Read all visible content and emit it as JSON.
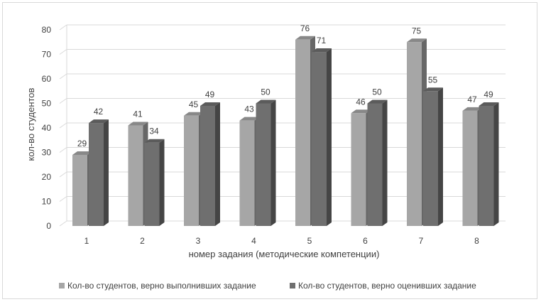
{
  "chart_data": {
    "type": "bar",
    "categories": [
      "1",
      "2",
      "3",
      "4",
      "5",
      "6",
      "7",
      "8"
    ],
    "series": [
      {
        "name": "Кол-во студентов, верно выполнивших задание",
        "values": [
          29,
          41,
          45,
          43,
          76,
          46,
          75,
          47
        ],
        "color": "#a6a6a6"
      },
      {
        "name": "Кол-во студентов, верно оценивших задание",
        "values": [
          42,
          34,
          49,
          50,
          71,
          50,
          55,
          49
        ],
        "color": "#6f6f6f"
      }
    ],
    "xlabel": "номер задания (методические компетенции)",
    "ylabel": "кол-во студентов",
    "ylim": [
      0,
      80
    ],
    "yticks": [
      0,
      10,
      20,
      30,
      40,
      50,
      60,
      70,
      80
    ],
    "grid": true,
    "legend_position": "bottom",
    "style": "3d-column"
  }
}
